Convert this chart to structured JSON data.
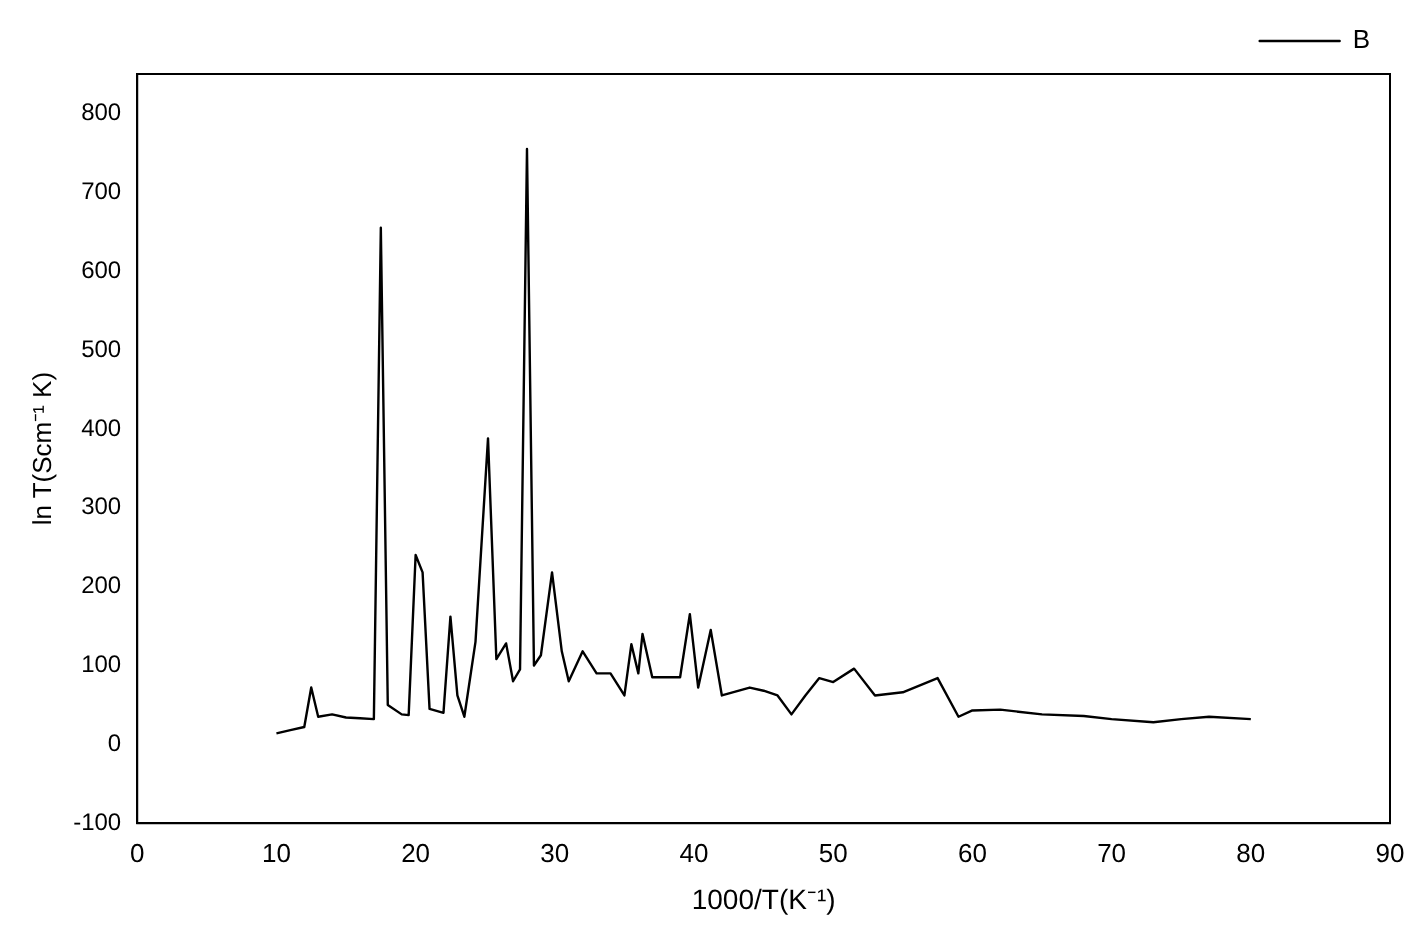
{
  "chart_data": {
    "type": "line",
    "xlabel": "1000/T(K⁻¹)",
    "ylabel": "ln T(Scm⁻¹ K)",
    "xlim": [
      0,
      90
    ],
    "xticks": [
      0,
      10,
      20,
      30,
      40,
      50,
      60,
      70,
      80,
      90
    ],
    "ylim": [
      -100,
      850
    ],
    "yticks": [
      -100,
      0,
      100,
      200,
      300,
      400,
      500,
      600,
      700,
      800
    ],
    "legend": "top right",
    "marker": "none",
    "line_style": "solid",
    "grid": false,
    "series": [
      {
        "name": "B",
        "color": "#000000",
        "x": [
          10,
          11,
          12,
          12.5,
          13,
          14,
          15,
          16,
          17,
          17.5,
          18,
          19,
          19.5,
          20,
          20.5,
          21,
          22,
          22.5,
          23,
          23.5,
          24.3,
          25.2,
          25.8,
          26.5,
          27,
          27.5,
          28,
          28.5,
          29,
          29.8,
          30.5,
          31,
          32,
          33,
          34,
          35,
          35.5,
          36,
          36.3,
          37,
          39,
          39.7,
          40.3,
          41.2,
          42,
          44,
          45,
          46,
          47,
          48,
          49,
          50,
          51.5,
          53,
          55,
          57.5,
          59,
          60,
          62,
          65,
          68,
          70,
          73,
          75,
          77,
          80
        ],
        "values": [
          14,
          18,
          22,
          72,
          35,
          38,
          34,
          33,
          32,
          655,
          50,
          38,
          37,
          240,
          218,
          45,
          40,
          162,
          62,
          35,
          130,
          388,
          108,
          128,
          80,
          95,
          755,
          100,
          113,
          218,
          118,
          80,
          118,
          90,
          90,
          62,
          127,
          90,
          140,
          85,
          85,
          165,
          72,
          145,
          62,
          72,
          68,
          62,
          38,
          62,
          84,
          79,
          96,
          62,
          66,
          84,
          35,
          43,
          44,
          38,
          36,
          32,
          28,
          32,
          35,
          32
        ]
      }
    ]
  }
}
